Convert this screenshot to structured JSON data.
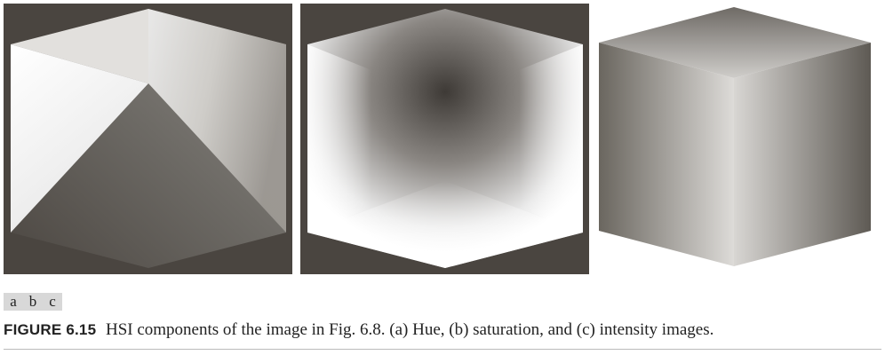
{
  "panels": [
    {
      "id": "a",
      "component": "Hue"
    },
    {
      "id": "b",
      "component": "Saturation"
    },
    {
      "id": "c",
      "component": "Intensity"
    }
  ],
  "subfigure_labels": [
    "a",
    "b",
    "c"
  ],
  "caption": {
    "figure_number": "FIGURE 6.15",
    "text": "HSI components of the image in Fig. 6.8. (a) Hue, (b) saturation, and (c) intensity images."
  },
  "colors": {
    "panel_background": "#4a4540",
    "label_background": "#d8d8d8"
  }
}
